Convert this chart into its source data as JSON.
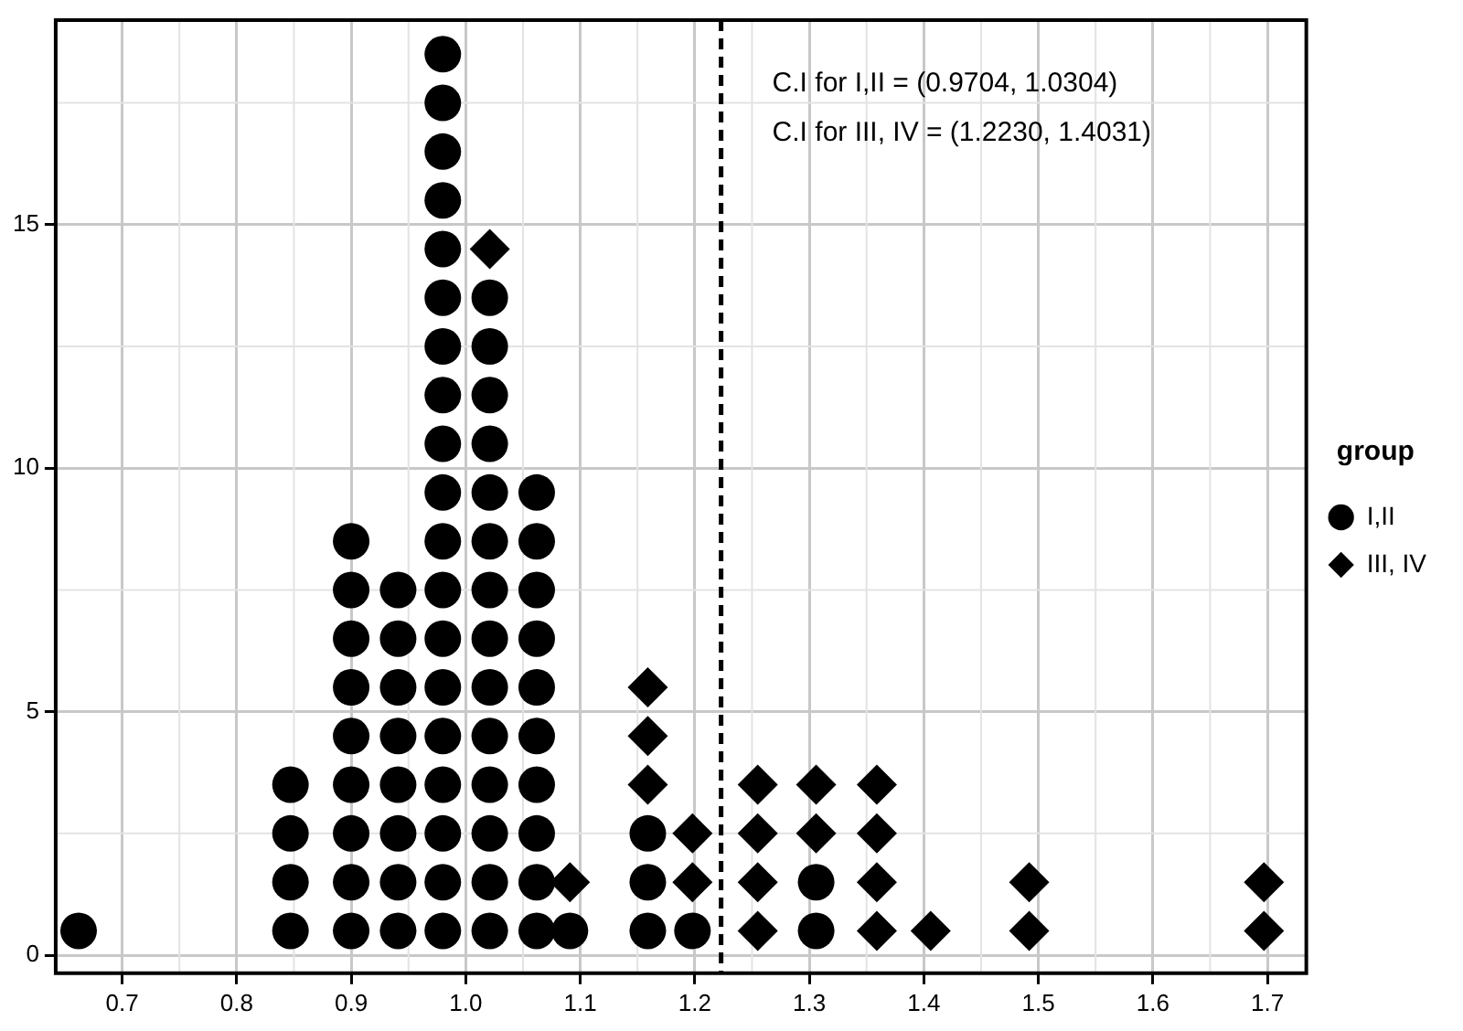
{
  "chart_data": {
    "type": "scatter",
    "legend_title": "group",
    "legend": "right",
    "grid": true,
    "xlim": [
      0.642,
      1.734
    ],
    "xticks": [
      0.7,
      0.8,
      0.9,
      {
        "value": 1,
        "label": "1.0"
      },
      1.1,
      1.2,
      1.3,
      1.4,
      1.5,
      1.6,
      1.7
    ],
    "ylim": [
      -0.37,
      19.2
    ],
    "yticks": [
      0,
      5,
      10,
      15
    ],
    "ref_lines": [
      {
        "axis": "x",
        "value": 1.223,
        "line_style": "dashed",
        "color": "#000000"
      }
    ],
    "annotations": [
      "C.I for I,II = (0.9704, 1.0304)",
      "C.I for III, IV = (1.2230, 1.4031)"
    ],
    "series": [
      {
        "name": "I,II",
        "color": "#000000",
        "marker": "circle",
        "x": [
          0.662,
          0.847,
          0.847,
          0.847,
          0.847,
          0.9,
          0.9,
          0.9,
          0.9,
          0.9,
          0.9,
          0.9,
          0.9,
          0.9,
          0.941,
          0.941,
          0.941,
          0.941,
          0.941,
          0.941,
          0.941,
          0.941,
          0.98,
          0.98,
          0.98,
          0.98,
          0.98,
          0.98,
          0.98,
          0.98,
          0.98,
          0.98,
          0.98,
          0.98,
          0.98,
          0.98,
          0.98,
          0.98,
          0.98,
          0.98,
          0.98,
          1.021,
          1.021,
          1.021,
          1.021,
          1.021,
          1.021,
          1.021,
          1.021,
          1.021,
          1.021,
          1.021,
          1.021,
          1.021,
          1.021,
          1.062,
          1.062,
          1.062,
          1.062,
          1.062,
          1.062,
          1.062,
          1.062,
          1.062,
          1.062,
          1.091,
          1.159,
          1.159,
          1.159,
          1.198,
          1.306,
          1.306
        ],
        "values": [
          0.5,
          0.5,
          1.5,
          2.5,
          3.5,
          0.5,
          1.5,
          2.5,
          3.5,
          4.5,
          5.5,
          6.5,
          7.5,
          8.5,
          0.5,
          1.5,
          2.5,
          3.5,
          4.5,
          5.5,
          6.5,
          7.5,
          0.5,
          1.5,
          2.5,
          3.5,
          4.5,
          5.5,
          6.5,
          7.5,
          8.5,
          9.5,
          10.5,
          11.5,
          12.5,
          13.5,
          14.5,
          15.5,
          16.5,
          17.5,
          18.5,
          0.5,
          1.5,
          2.5,
          3.5,
          4.5,
          5.5,
          6.5,
          7.5,
          8.5,
          9.5,
          10.5,
          11.5,
          12.5,
          13.5,
          0.5,
          1.5,
          2.5,
          3.5,
          4.5,
          5.5,
          6.5,
          7.5,
          8.5,
          9.5,
          0.5,
          0.5,
          1.5,
          2.5,
          0.5,
          0.5,
          1.5
        ]
      },
      {
        "name": "III, IV",
        "color": "#000000",
        "marker": "diamond",
        "x": [
          1.021,
          1.091,
          1.159,
          1.159,
          1.159,
          1.198,
          1.198,
          1.255,
          1.255,
          1.255,
          1.255,
          1.306,
          1.306,
          1.359,
          1.359,
          1.359,
          1.359,
          1.406,
          1.492,
          1.492,
          1.697,
          1.697
        ],
        "values": [
          14.5,
          1.5,
          3.5,
          4.5,
          5.5,
          1.5,
          2.5,
          0.5,
          1.5,
          2.5,
          3.5,
          2.5,
          3.5,
          0.5,
          1.5,
          2.5,
          3.5,
          0.5,
          0.5,
          1.5,
          0.5,
          1.5
        ]
      }
    ]
  }
}
